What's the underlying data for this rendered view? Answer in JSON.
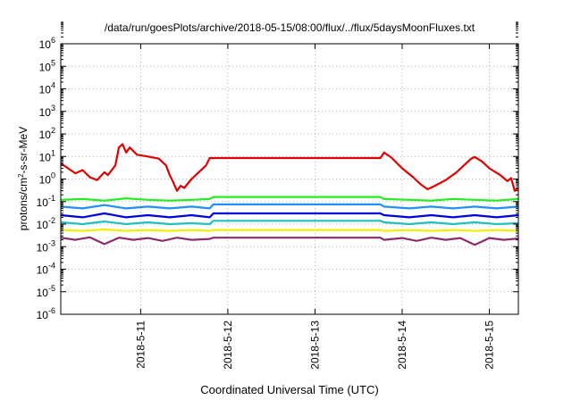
{
  "chart_data": {
    "type": "line",
    "title": "/data/run/goesPlots/archive/2018-05-15/08:00/flux/../flux/5daysMoonFluxes.txt",
    "xlabel": "Coordinated Universal Time (UTC)",
    "ylabel": {
      "pre": "protons/cm",
      "sup": "2",
      "post": "-s-sr-MeV"
    },
    "yscale": "log",
    "ylim": [
      1e-06,
      1000000.0
    ],
    "xlim": [
      "2018-05-10T02:00",
      "2018-05-15T08:00"
    ],
    "grid": true,
    "xticks": [
      {
        "label": "2018-5-11",
        "date": "2018-05-11T00:00"
      },
      {
        "label": "2018-5-12",
        "date": "2018-05-12T00:00"
      },
      {
        "label": "2018-5-13",
        "date": "2018-05-13T00:00"
      },
      {
        "label": "2018-5-14",
        "date": "2018-05-14T00:00"
      },
      {
        "label": "2018-5-15",
        "date": "2018-05-15T00:00"
      }
    ],
    "yticks": [
      {
        "base": "10",
        "exp": "6",
        "value": 1000000.0
      },
      {
        "base": "10",
        "exp": "5",
        "value": 100000.0
      },
      {
        "base": "10",
        "exp": "4",
        "value": 10000.0
      },
      {
        "base": "10",
        "exp": "3",
        "value": 1000.0
      },
      {
        "base": "10",
        "exp": "2",
        "value": 100.0
      },
      {
        "base": "10",
        "exp": "1",
        "value": 10.0
      },
      {
        "base": "10",
        "exp": "0",
        "value": 1.0
      },
      {
        "base": "10",
        "exp": "-1",
        "value": 0.1
      },
      {
        "base": "10",
        "exp": "-2",
        "value": 0.01
      },
      {
        "base": "10",
        "exp": "-3",
        "value": 0.001
      },
      {
        "base": "10",
        "exp": "-4",
        "value": 0.0001
      },
      {
        "base": "10",
        "exp": "-5",
        "value": 1e-05
      },
      {
        "base": "10",
        "exp": "-6",
        "value": 1e-06
      }
    ],
    "series": [
      {
        "color": "#e00000",
        "values": [
          [
            "2018-05-10T02:00",
            5
          ],
          [
            "2018-05-10T04:00",
            3
          ],
          [
            "2018-05-10T06:00",
            1.8
          ],
          [
            "2018-05-10T08:00",
            2.5
          ],
          [
            "2018-05-10T10:00",
            1.2
          ],
          [
            "2018-05-10T12:00",
            0.9
          ],
          [
            "2018-05-10T14:00",
            2.0
          ],
          [
            "2018-05-10T15:00",
            1.5
          ],
          [
            "2018-05-10T17:00",
            4.0
          ],
          [
            "2018-05-10T18:00",
            25
          ],
          [
            "2018-05-10T19:00",
            35
          ],
          [
            "2018-05-10T20:00",
            15
          ],
          [
            "2018-05-10T21:00",
            25
          ],
          [
            "2018-05-10T23:00",
            12
          ],
          [
            "2018-05-11T02:00",
            10
          ],
          [
            "2018-05-11T05:00",
            8
          ],
          [
            "2018-05-11T07:00",
            4
          ],
          [
            "2018-05-11T08:00",
            1.5
          ],
          [
            "2018-05-11T09:00",
            0.7
          ],
          [
            "2018-05-11T10:00",
            0.3
          ],
          [
            "2018-05-11T11:00",
            0.5
          ],
          [
            "2018-05-11T12:00",
            0.4
          ],
          [
            "2018-05-11T14:00",
            1.0
          ],
          [
            "2018-05-11T16:00",
            2.0
          ],
          [
            "2018-05-11T18:00",
            4.0
          ],
          [
            "2018-05-11T19:00",
            8.5
          ],
          [
            "2018-05-13T18:00",
            8.5
          ],
          [
            "2018-05-13T19:00",
            15
          ],
          [
            "2018-05-13T21:00",
            9
          ],
          [
            "2018-05-14T00:00",
            3.0
          ],
          [
            "2018-05-14T03:00",
            1.2
          ],
          [
            "2018-05-14T05:00",
            0.6
          ],
          [
            "2018-05-14T07:00",
            0.35
          ],
          [
            "2018-05-14T09:00",
            0.5
          ],
          [
            "2018-05-14T12:00",
            0.9
          ],
          [
            "2018-05-14T15:00",
            2.0
          ],
          [
            "2018-05-14T17:00",
            4.0
          ],
          [
            "2018-05-14T19:00",
            8.0
          ],
          [
            "2018-05-14T20:00",
            9.5
          ],
          [
            "2018-05-14T22:00",
            6.0
          ],
          [
            "2018-05-15T00:00",
            3.0
          ],
          [
            "2018-05-15T03:00",
            1.5
          ],
          [
            "2018-05-15T05:00",
            0.8
          ],
          [
            "2018-05-15T06:00",
            1.1
          ],
          [
            "2018-05-15T07:00",
            0.3
          ],
          [
            "2018-05-15T08:00",
            0.4
          ]
        ]
      },
      {
        "color": "#22ee22",
        "values": [
          [
            "2018-05-10T02:00",
            0.12
          ],
          [
            "2018-05-10T08:00",
            0.13
          ],
          [
            "2018-05-10T14:00",
            0.11
          ],
          [
            "2018-05-10T20:00",
            0.14
          ],
          [
            "2018-05-11T02:00",
            0.12
          ],
          [
            "2018-05-11T08:00",
            0.11
          ],
          [
            "2018-05-11T14:00",
            0.12
          ],
          [
            "2018-05-11T19:00",
            0.13
          ],
          [
            "2018-05-11T20:00",
            0.16
          ],
          [
            "2018-05-13T18:00",
            0.16
          ],
          [
            "2018-05-13T19:00",
            0.13
          ],
          [
            "2018-05-14T02:00",
            0.12
          ],
          [
            "2018-05-14T08:00",
            0.11
          ],
          [
            "2018-05-14T14:00",
            0.13
          ],
          [
            "2018-05-14T20:00",
            0.12
          ],
          [
            "2018-05-15T02:00",
            0.11
          ],
          [
            "2018-05-15T08:00",
            0.13
          ]
        ]
      },
      {
        "color": "#1e90ff",
        "values": [
          [
            "2018-05-10T02:00",
            0.06
          ],
          [
            "2018-05-10T08:00",
            0.05
          ],
          [
            "2018-05-10T14:00",
            0.07
          ],
          [
            "2018-05-10T20:00",
            0.05
          ],
          [
            "2018-05-11T02:00",
            0.06
          ],
          [
            "2018-05-11T08:00",
            0.05
          ],
          [
            "2018-05-11T14:00",
            0.06
          ],
          [
            "2018-05-11T19:00",
            0.05
          ],
          [
            "2018-05-11T20:00",
            0.075
          ],
          [
            "2018-05-13T18:00",
            0.075
          ],
          [
            "2018-05-13T19:00",
            0.06
          ],
          [
            "2018-05-14T02:00",
            0.05
          ],
          [
            "2018-05-14T08:00",
            0.06
          ],
          [
            "2018-05-14T14:00",
            0.05
          ],
          [
            "2018-05-14T20:00",
            0.06
          ],
          [
            "2018-05-15T02:00",
            0.05
          ],
          [
            "2018-05-15T08:00",
            0.06
          ]
        ]
      },
      {
        "color": "#0000dd",
        "values": [
          [
            "2018-05-10T02:00",
            0.025
          ],
          [
            "2018-05-10T08:00",
            0.02
          ],
          [
            "2018-05-10T14:00",
            0.03
          ],
          [
            "2018-05-10T20:00",
            0.02
          ],
          [
            "2018-05-11T02:00",
            0.025
          ],
          [
            "2018-05-11T08:00",
            0.02
          ],
          [
            "2018-05-11T14:00",
            0.025
          ],
          [
            "2018-05-11T19:00",
            0.02
          ],
          [
            "2018-05-11T20:00",
            0.03
          ],
          [
            "2018-05-13T18:00",
            0.03
          ],
          [
            "2018-05-13T19:00",
            0.025
          ],
          [
            "2018-05-14T02:00",
            0.02
          ],
          [
            "2018-05-14T08:00",
            0.025
          ],
          [
            "2018-05-14T14:00",
            0.02
          ],
          [
            "2018-05-14T20:00",
            0.025
          ],
          [
            "2018-05-15T02:00",
            0.02
          ],
          [
            "2018-05-15T08:00",
            0.025
          ]
        ]
      },
      {
        "color": "#20c0c0",
        "values": [
          [
            "2018-05-10T02:00",
            0.012
          ],
          [
            "2018-05-10T08:00",
            0.01
          ],
          [
            "2018-05-10T14:00",
            0.013
          ],
          [
            "2018-05-10T20:00",
            0.01
          ],
          [
            "2018-05-11T02:00",
            0.012
          ],
          [
            "2018-05-11T08:00",
            0.01
          ],
          [
            "2018-05-11T14:00",
            0.011
          ],
          [
            "2018-05-11T19:00",
            0.01
          ],
          [
            "2018-05-11T20:00",
            0.014
          ],
          [
            "2018-05-13T18:00",
            0.014
          ],
          [
            "2018-05-13T19:00",
            0.012
          ],
          [
            "2018-05-14T02:00",
            0.01
          ],
          [
            "2018-05-14T08:00",
            0.012
          ],
          [
            "2018-05-14T14:00",
            0.01
          ],
          [
            "2018-05-14T20:00",
            0.012
          ],
          [
            "2018-05-15T02:00",
            0.01
          ],
          [
            "2018-05-15T08:00",
            0.011
          ]
        ]
      },
      {
        "color": "#f0f000",
        "values": [
          [
            "2018-05-10T02:00",
            0.0055
          ],
          [
            "2018-05-10T08:00",
            0.005
          ],
          [
            "2018-05-10T14:00",
            0.0058
          ],
          [
            "2018-05-10T20:00",
            0.005
          ],
          [
            "2018-05-11T02:00",
            0.0055
          ],
          [
            "2018-05-11T08:00",
            0.005
          ],
          [
            "2018-05-11T14:00",
            0.0055
          ],
          [
            "2018-05-11T19:00",
            0.005
          ],
          [
            "2018-05-11T20:00",
            0.0055
          ],
          [
            "2018-05-13T18:00",
            0.0055
          ],
          [
            "2018-05-13T19:00",
            0.005
          ],
          [
            "2018-05-14T02:00",
            0.0055
          ],
          [
            "2018-05-14T08:00",
            0.005
          ],
          [
            "2018-05-14T14:00",
            0.0055
          ],
          [
            "2018-05-14T20:00",
            0.005
          ],
          [
            "2018-05-15T02:00",
            0.0055
          ],
          [
            "2018-05-15T08:00",
            0.005
          ]
        ]
      },
      {
        "color": "#8b2b6b",
        "values": [
          [
            "2018-05-10T02:00",
            0.0025
          ],
          [
            "2018-05-10T06:00",
            0.002
          ],
          [
            "2018-05-10T10:00",
            0.0026
          ],
          [
            "2018-05-10T14:00",
            0.0013
          ],
          [
            "2018-05-10T18:00",
            0.0025
          ],
          [
            "2018-05-10T22:00",
            0.002
          ],
          [
            "2018-05-11T02:00",
            0.0024
          ],
          [
            "2018-05-11T06:00",
            0.0018
          ],
          [
            "2018-05-11T10:00",
            0.0025
          ],
          [
            "2018-05-11T14:00",
            0.002
          ],
          [
            "2018-05-11T19:00",
            0.0022
          ],
          [
            "2018-05-11T20:00",
            0.0025
          ],
          [
            "2018-05-13T18:00",
            0.0025
          ],
          [
            "2018-05-13T19:00",
            0.002
          ],
          [
            "2018-05-14T00:00",
            0.0024
          ],
          [
            "2018-05-14T04:00",
            0.0018
          ],
          [
            "2018-05-14T08:00",
            0.0025
          ],
          [
            "2018-05-14T12:00",
            0.002
          ],
          [
            "2018-05-14T16:00",
            0.0024
          ],
          [
            "2018-05-14T20:00",
            0.0012
          ],
          [
            "2018-05-15T00:00",
            0.0024
          ],
          [
            "2018-05-15T04:00",
            0.002
          ],
          [
            "2018-05-15T08:00",
            0.0023
          ]
        ]
      }
    ]
  }
}
